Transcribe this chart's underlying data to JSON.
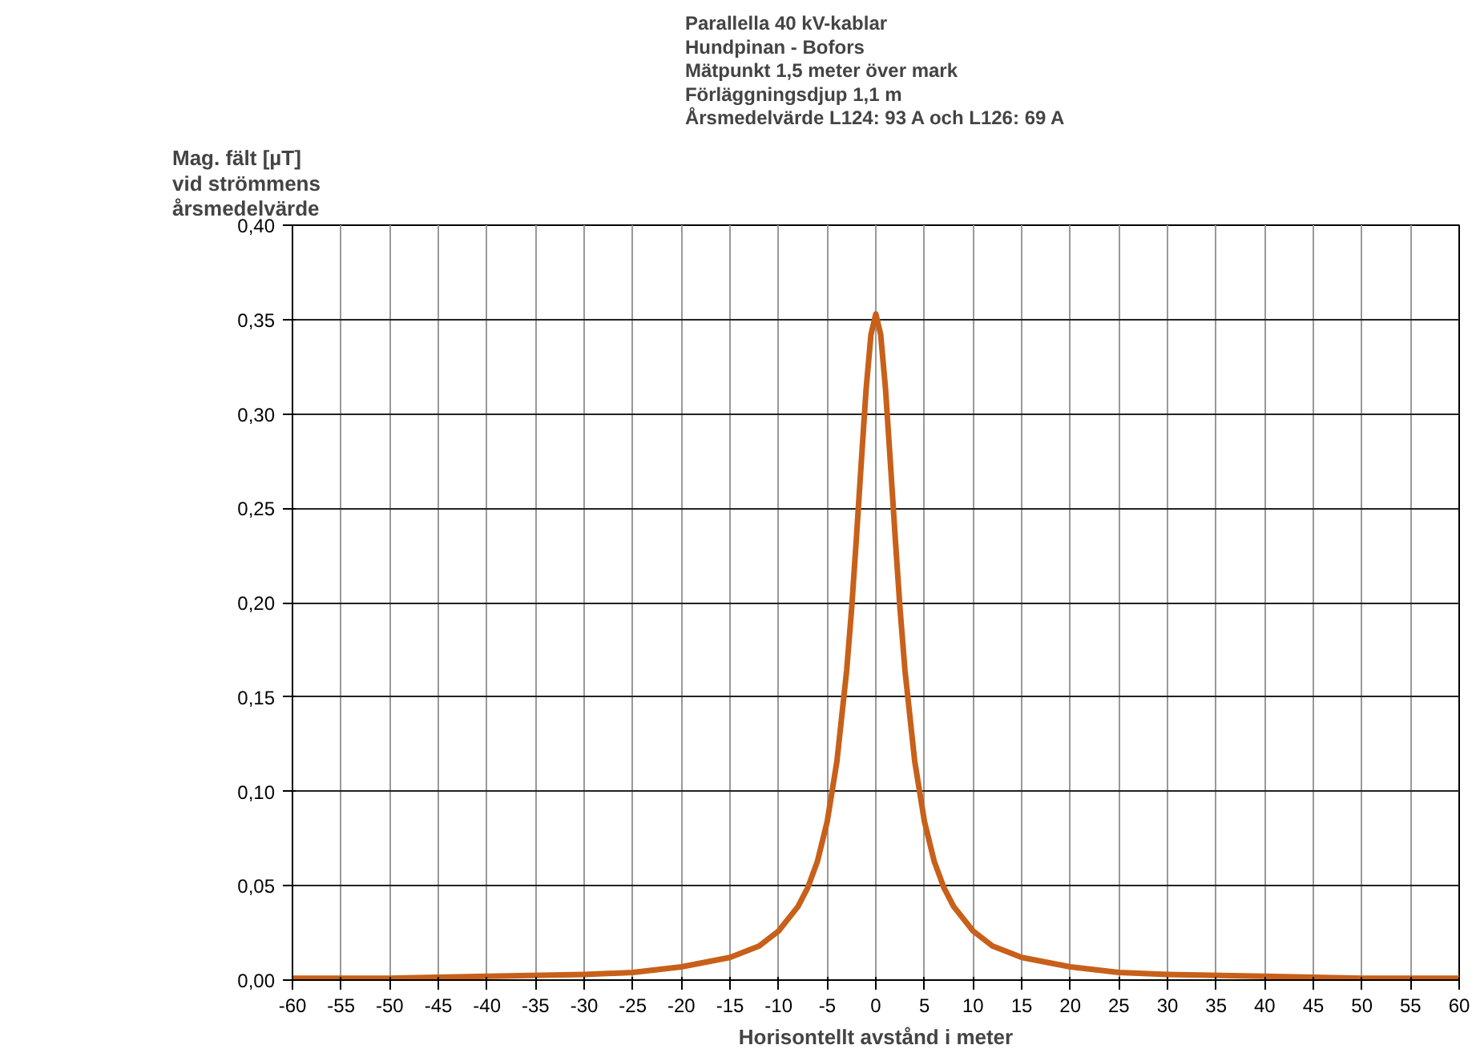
{
  "chart_data": {
    "type": "line",
    "title": "Parallella 40 kV-kablar\nHundpinan - Bofors\nMätpunkt 1,5 meter över mark\nFörläggningsdjup 1,1 m\nÅrsmedelvärde L124: 93 A och L126: 69 A",
    "ylabel": "Mag. fält [µT]\nvid strömmens\nårsmedelvärde",
    "xlabel": "Horisontellt avstånd i meter",
    "x": [
      -60,
      -50,
      -40,
      -30,
      -25,
      -20,
      -15,
      -12,
      -10,
      -8,
      -7,
      -6,
      -5,
      -4,
      -3,
      -2.5,
      -2,
      -1.5,
      -1,
      -0.5,
      0,
      0.5,
      1,
      1.5,
      2,
      2.5,
      3,
      4,
      5,
      6,
      7,
      8,
      10,
      12,
      15,
      20,
      25,
      30,
      40,
      50,
      60
    ],
    "series": [
      {
        "color": "#c8601a",
        "values": [
          0.001,
          0.001,
          0.002,
          0.003,
          0.004,
          0.007,
          0.012,
          0.018,
          0.026,
          0.039,
          0.049,
          0.063,
          0.084,
          0.116,
          0.164,
          0.196,
          0.234,
          0.274,
          0.313,
          0.342,
          0.353,
          0.342,
          0.313,
          0.274,
          0.234,
          0.196,
          0.164,
          0.116,
          0.084,
          0.063,
          0.049,
          0.039,
          0.026,
          0.018,
          0.012,
          0.007,
          0.004,
          0.003,
          0.002,
          0.001,
          0.001
        ]
      }
    ],
    "xlim": [
      -60,
      60
    ],
    "xticks": [
      -60,
      -55,
      -50,
      -45,
      -40,
      -35,
      -30,
      -25,
      -20,
      -15,
      -10,
      -5,
      0,
      5,
      10,
      15,
      20,
      25,
      30,
      35,
      40,
      45,
      50,
      55,
      60
    ],
    "ylim": [
      0,
      0.4
    ],
    "yticks": [
      {
        "value": 0,
        "label": "0,00"
      },
      {
        "value": 0.05,
        "label": "0,05"
      },
      {
        "value": 0.1,
        "label": "0,10"
      },
      {
        "value": 0.15,
        "label": "0,15"
      },
      {
        "value": 0.2,
        "label": "0,20"
      },
      {
        "value": 0.25,
        "label": "0,25"
      },
      {
        "value": 0.3,
        "label": "0,30"
      },
      {
        "value": 0.35,
        "label": "0,35"
      },
      {
        "value": 0.4,
        "label": "0,40"
      }
    ],
    "grid": true,
    "marker": "none",
    "line_style": "solid"
  }
}
